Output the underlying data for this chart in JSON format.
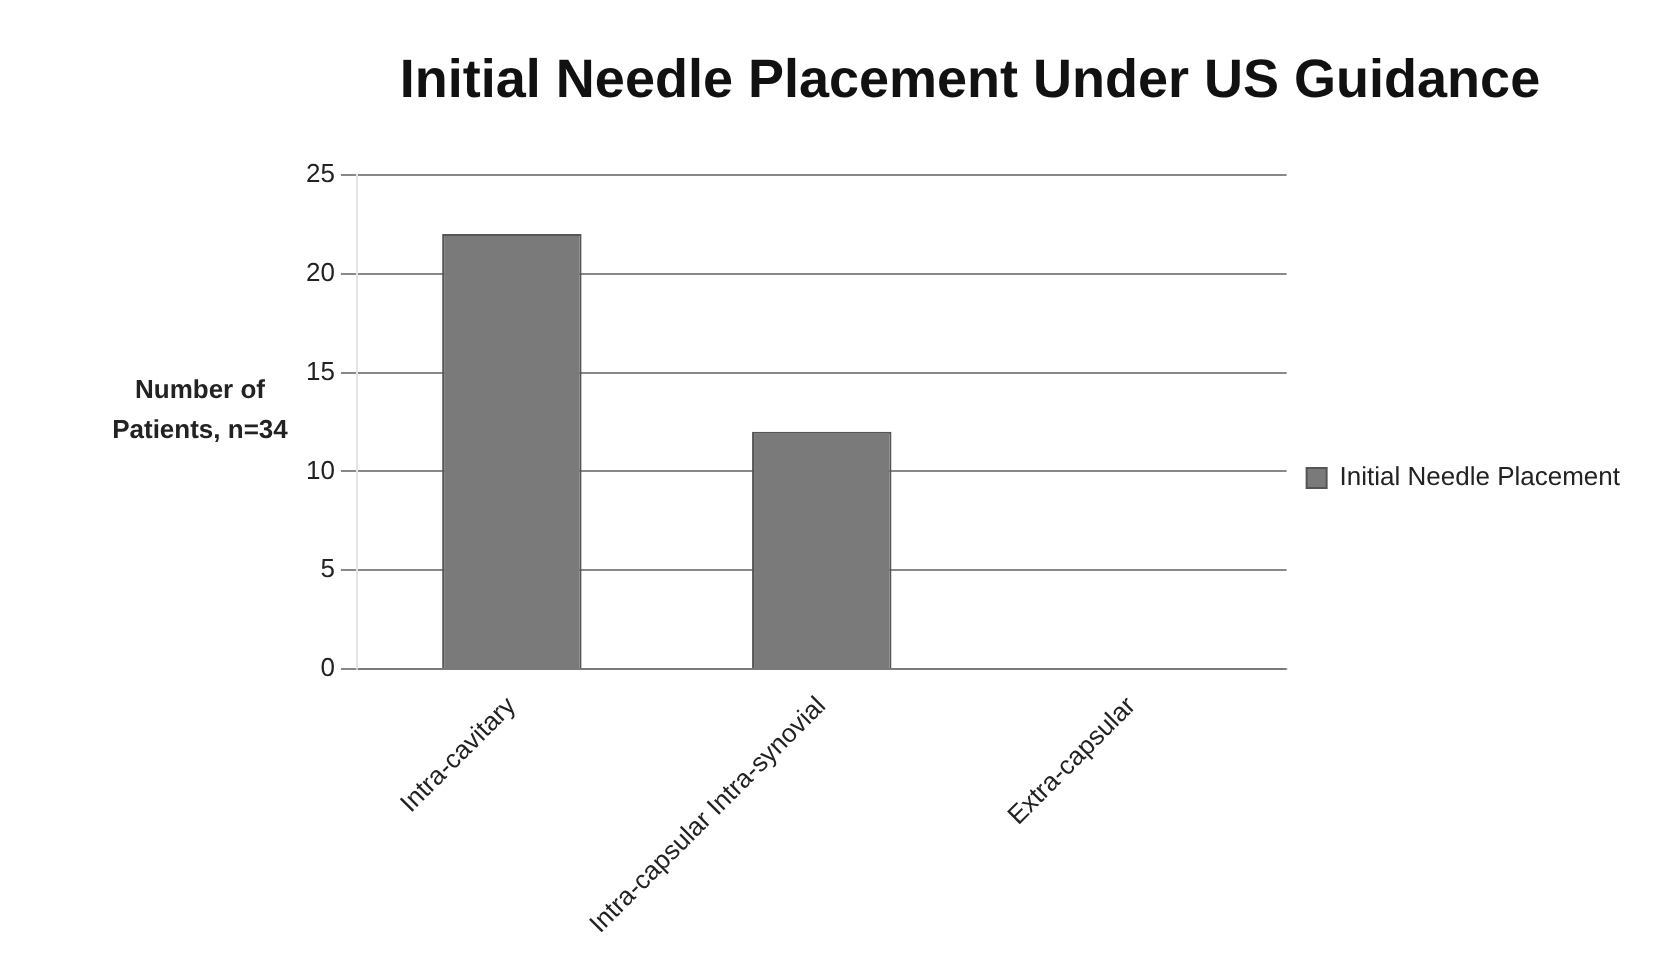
{
  "chart_data": {
    "type": "bar",
    "title": "Initial Needle Placement Under US Guidance",
    "ylabel": "Number of Patients, n=34",
    "categories": [
      "Intra-cavitary",
      "Intra-capsular Intra-synovial",
      "Extra-capsular"
    ],
    "series": [
      {
        "name": "Initial Needle Placement",
        "color": "#7a7a7a",
        "values": [
          22,
          12,
          0
        ]
      }
    ],
    "ylim": [
      0,
      25
    ],
    "yticks": [
      0,
      5,
      10,
      15,
      20,
      25
    ],
    "grid": "y",
    "legend": "right"
  }
}
